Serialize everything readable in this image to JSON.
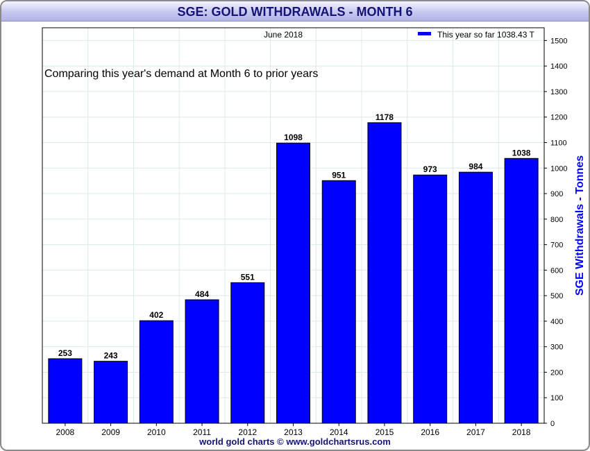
{
  "title": "SGE: GOLD WITHDRAWALS - MONTH 6",
  "footer": "world gold charts © www.goldchartsrus.com",
  "chart_data": {
    "type": "bar",
    "categories": [
      "2008",
      "2009",
      "2010",
      "2011",
      "2012",
      "2013",
      "2014",
      "2015",
      "2016",
      "2017",
      "2018"
    ],
    "values": [
      253,
      243,
      402,
      484,
      551,
      1098,
      951,
      1178,
      973,
      984,
      1038
    ],
    "data_labels": [
      "253",
      "243",
      "402",
      "484",
      "551",
      "1098",
      "951",
      "1178",
      "973",
      "984",
      "1038"
    ],
    "period_label": "June 2018",
    "annotation": "Comparing this year's demand at Month 6 to prior years",
    "legend": {
      "label": "This year so far 1038.43 T",
      "placement": "top-right"
    },
    "ylabel": "SGE Withdrawals - Tonnes",
    "ylim": [
      0,
      1550
    ],
    "yticks": [
      0,
      100,
      200,
      300,
      400,
      500,
      600,
      700,
      800,
      900,
      1000,
      1100,
      1200,
      1300,
      1400,
      1500
    ],
    "y_axis_side": "right",
    "grid": true,
    "colors": {
      "bar": "#0000ff",
      "bar_border": "#000000",
      "title_text": "#141478",
      "axis_label": "#0000ff",
      "grid": "#dbe8e8"
    }
  }
}
